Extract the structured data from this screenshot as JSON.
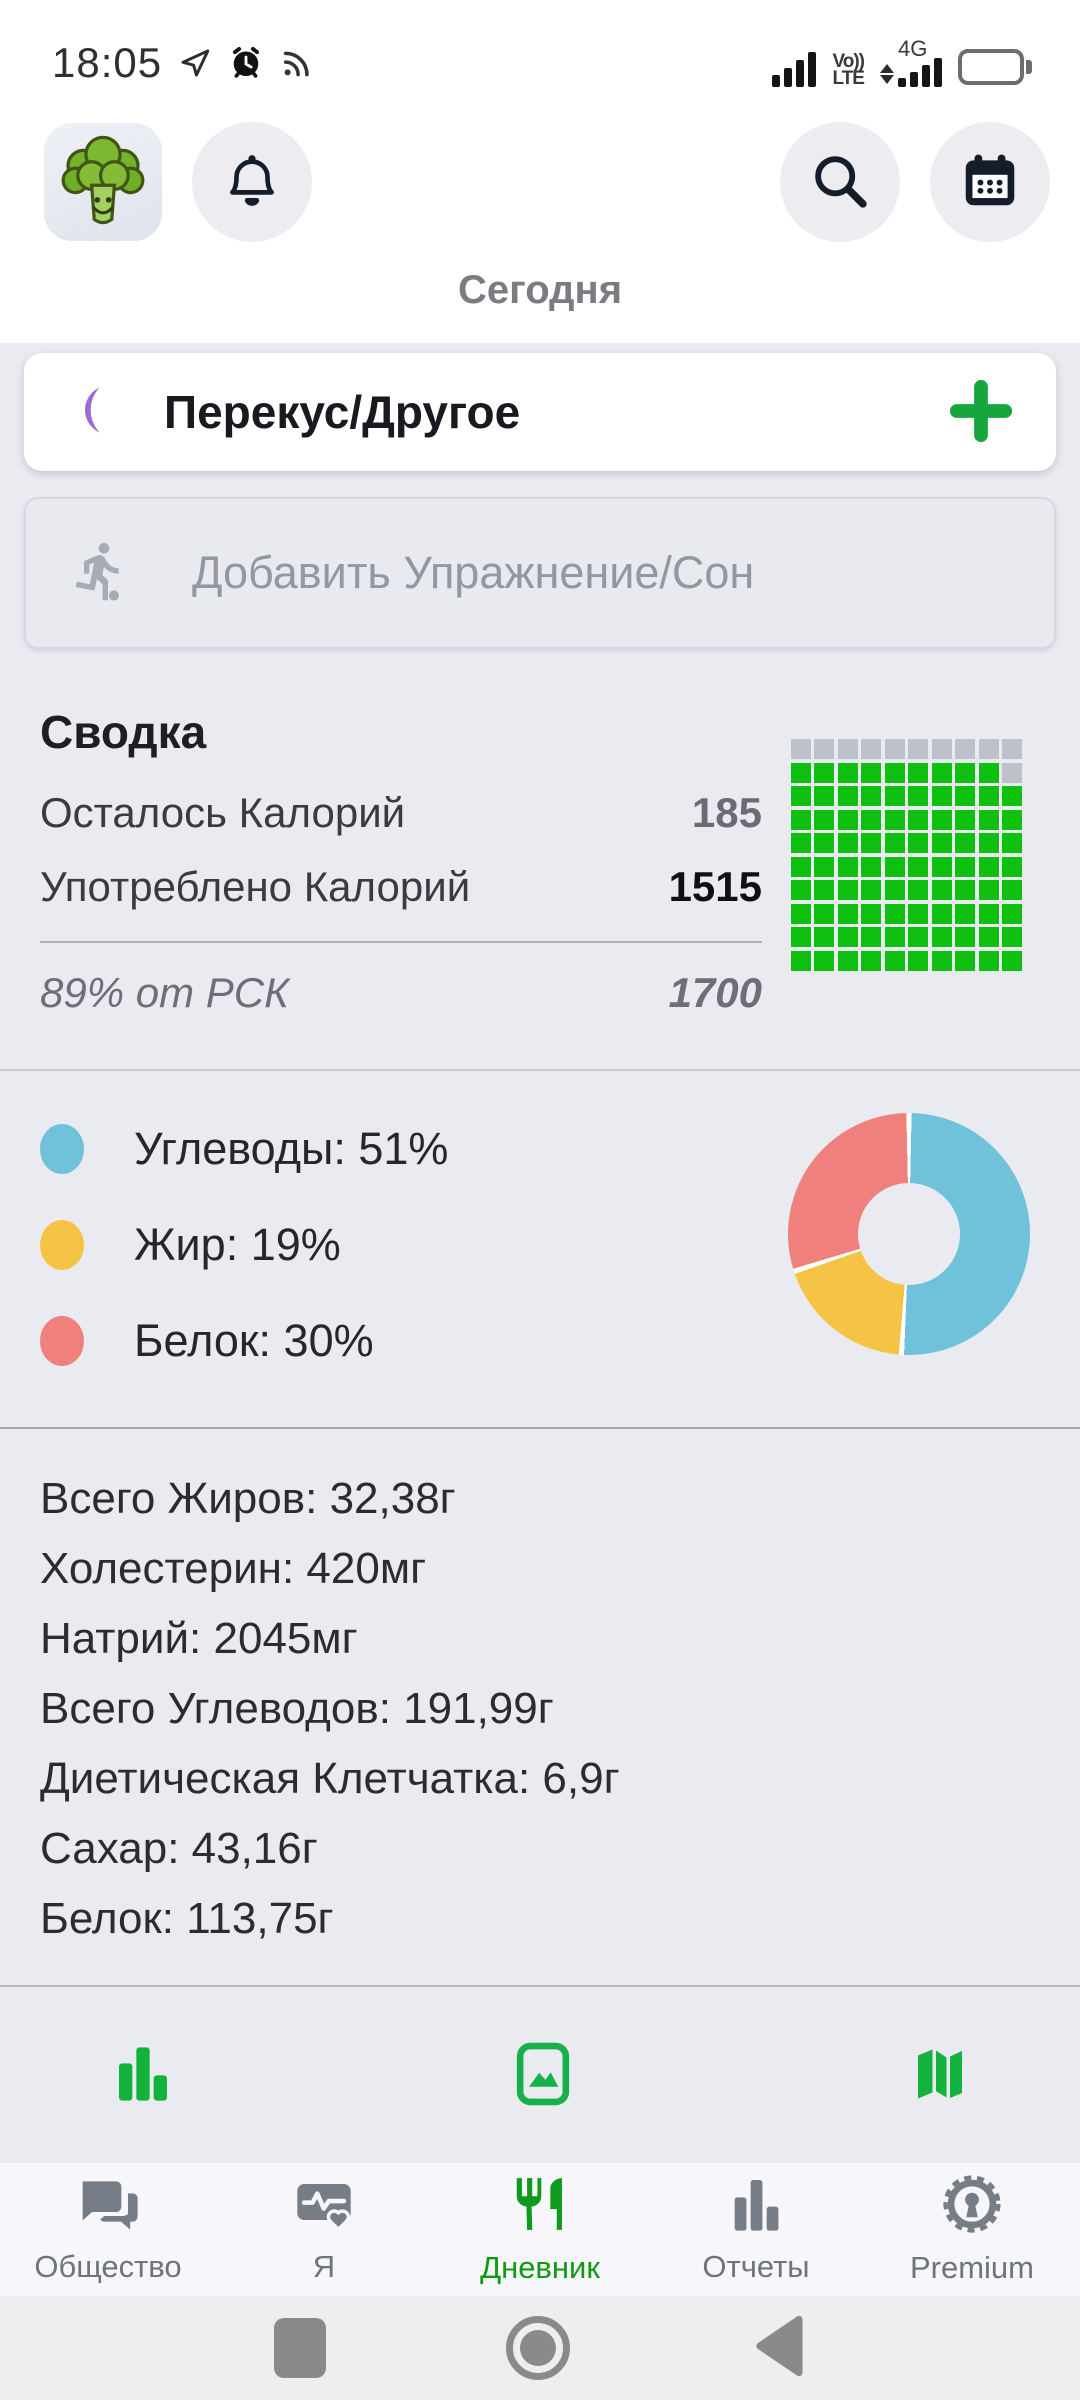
{
  "colors": {
    "accent_green": "#17a53e",
    "square_green": "#10c010",
    "square_gray": "#bdc1cb",
    "moon_purple": "#9c6ad6",
    "nav_gray": "#767d86",
    "nav_active_green": "#119a11",
    "page_bg": "#eaeaf1"
  },
  "status_bar": {
    "time": "18:05",
    "left_icons": [
      "navigation-arrow-icon",
      "alarm-clock-icon",
      "rss-icon"
    ],
    "volte_line1": "Vo))",
    "volte_line2": "LTE",
    "network_label": "4G",
    "right_icons": [
      "signal-bars-icon",
      "volte-icon",
      "4g-signal-icon",
      "battery-full-icon"
    ]
  },
  "header": {
    "title": "Сегодня",
    "icons": [
      "broccoli-avatar",
      "bell-icon",
      "search-icon",
      "calendar-icon"
    ]
  },
  "meal_card": {
    "title": "Перекус/Другое",
    "icon": "moon-icon",
    "action": "plus-icon"
  },
  "exercise": {
    "placeholder": "Добавить Упражнение/Сон",
    "icon": "runner-icon"
  },
  "summary": {
    "title": "Сводка",
    "rows": [
      {
        "label": "Осталось Калорий",
        "value": "185",
        "strong": false
      },
      {
        "label": "Употреблено Калорий",
        "value": "1515",
        "strong": true
      }
    ],
    "rda_label": "89% от РСК",
    "rda_value": "1700",
    "rda_percent": 89,
    "grid": {
      "columns": 10,
      "rows": 10,
      "filled": 89
    }
  },
  "chart_data": {
    "type": "pie",
    "donut": true,
    "labels": [
      "Углеводы",
      "Жир",
      "Белок"
    ],
    "values": [
      51,
      19,
      30
    ],
    "unit": "%",
    "colors": [
      "#6fc2da",
      "#f6c445",
      "#f0807c"
    ],
    "legend_position": "left",
    "start_angle_deg": 0,
    "direction": "clockwise"
  },
  "nutrients": [
    {
      "label": "Всего Жиров",
      "value": "32,38г"
    },
    {
      "label": "Холестерин",
      "value": "420мг"
    },
    {
      "label": "Натрий",
      "value": "2045мг"
    },
    {
      "label": "Всего Углеводов",
      "value": "191,99г"
    },
    {
      "label": "Диетическая Клетчатка",
      "value": "6,9г"
    },
    {
      "label": "Сахар",
      "value": "43,16г"
    },
    {
      "label": "Белок",
      "value": "113,75г"
    }
  ],
  "quick_actions": [
    {
      "icon": "stats-icon"
    },
    {
      "icon": "photo-icon"
    },
    {
      "icon": "map-icon"
    }
  ],
  "bottom_nav": {
    "items": [
      {
        "label": "Общество",
        "icon": "chat-icon",
        "active": false
      },
      {
        "label": "Я",
        "icon": "health-card-icon",
        "active": false
      },
      {
        "label": "Дневник",
        "icon": "fork-knife-icon",
        "active": true
      },
      {
        "label": "Отчеты",
        "icon": "bar-chart-icon",
        "active": false
      },
      {
        "label": "Premium",
        "icon": "premium-badge-icon",
        "active": false
      }
    ]
  },
  "android_nav": {
    "buttons": [
      "recents-square",
      "home-circle",
      "back-triangle"
    ]
  }
}
